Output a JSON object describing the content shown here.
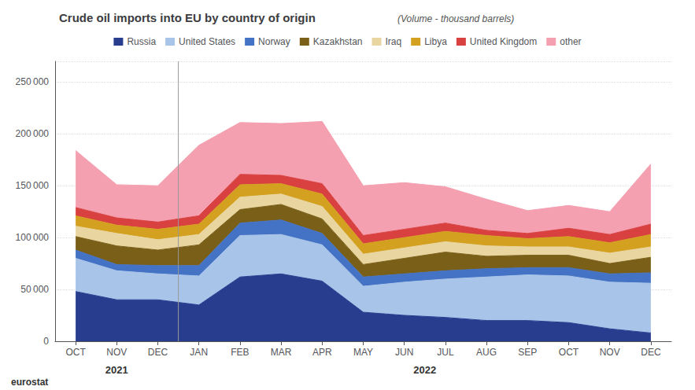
{
  "chart_data": {
    "type": "area",
    "stacked": true,
    "title": "Crude oil imports into EU by country of origin",
    "subtitle": "(Volume - thousand barrels)",
    "categories": [
      "OCT",
      "NOV",
      "DEC",
      "JAN",
      "FEB",
      "MAR",
      "APR",
      "MAY",
      "JUN",
      "JUL",
      "AUG",
      "SEP",
      "OCT",
      "NOV",
      "DEC"
    ],
    "category_groups": [
      "2021",
      "2021",
      "2021",
      "2022",
      "2022",
      "2022",
      "2022",
      "2022",
      "2022",
      "2022",
      "2022",
      "2022",
      "2022",
      "2022",
      "2022"
    ],
    "series": [
      {
        "name": "Russia",
        "color": "#293d8f",
        "values": [
          48000,
          40000,
          40000,
          35000,
          62000,
          65000,
          58000,
          28000,
          25000,
          23000,
          20000,
          20000,
          18000,
          12000,
          8000
        ]
      },
      {
        "name": "United States",
        "color": "#a8c4e8",
        "values": [
          32000,
          28000,
          25000,
          28000,
          40000,
          38000,
          35000,
          25000,
          32000,
          37000,
          42000,
          44000,
          45000,
          45000,
          48000
        ]
      },
      {
        "name": "Norway",
        "color": "#4472c4",
        "values": [
          8000,
          6000,
          8000,
          10000,
          12000,
          14000,
          11000,
          9000,
          8000,
          8000,
          8000,
          7000,
          8000,
          8000,
          10000
        ]
      },
      {
        "name": "Kazakhstan",
        "color": "#7a5f18",
        "values": [
          13000,
          18000,
          15000,
          20000,
          13000,
          15000,
          14000,
          12000,
          15000,
          18000,
          12000,
          12000,
          12000,
          10000,
          15000
        ]
      },
      {
        "name": "Iraq",
        "color": "#e8d5a0",
        "values": [
          10000,
          12000,
          10000,
          10000,
          12000,
          10000,
          12000,
          10000,
          10000,
          10000,
          10000,
          8000,
          8000,
          10000,
          10000
        ]
      },
      {
        "name": "Libya",
        "color": "#d4a020",
        "values": [
          10000,
          8000,
          10000,
          10000,
          12000,
          10000,
          12000,
          10000,
          10000,
          10000,
          10000,
          8000,
          10000,
          10000,
          12000
        ]
      },
      {
        "name": "United Kingdom",
        "color": "#d94040",
        "values": [
          8000,
          7000,
          7000,
          8000,
          10000,
          8000,
          10000,
          8000,
          8000,
          8000,
          5000,
          5000,
          8000,
          8000,
          10000
        ]
      },
      {
        "name": "other",
        "color": "#f4a0b0",
        "values": [
          55000,
          32000,
          35000,
          68000,
          50000,
          50000,
          60000,
          48000,
          45000,
          35000,
          30000,
          22000,
          22000,
          22000,
          58000
        ]
      }
    ],
    "ylim": [
      0,
      270000
    ],
    "yticks": [
      0,
      {
        "value": 50000,
        "label": "50 000"
      },
      {
        "value": 100000,
        "label": "100 000"
      },
      {
        "value": 150000,
        "label": "150 000"
      },
      {
        "value": 200000,
        "label": "200 000"
      },
      {
        "value": 250000,
        "label": "250 000"
      }
    ],
    "grid": true,
    "legend": "top",
    "annotations": [
      {
        "text": "eurostat"
      }
    ]
  }
}
